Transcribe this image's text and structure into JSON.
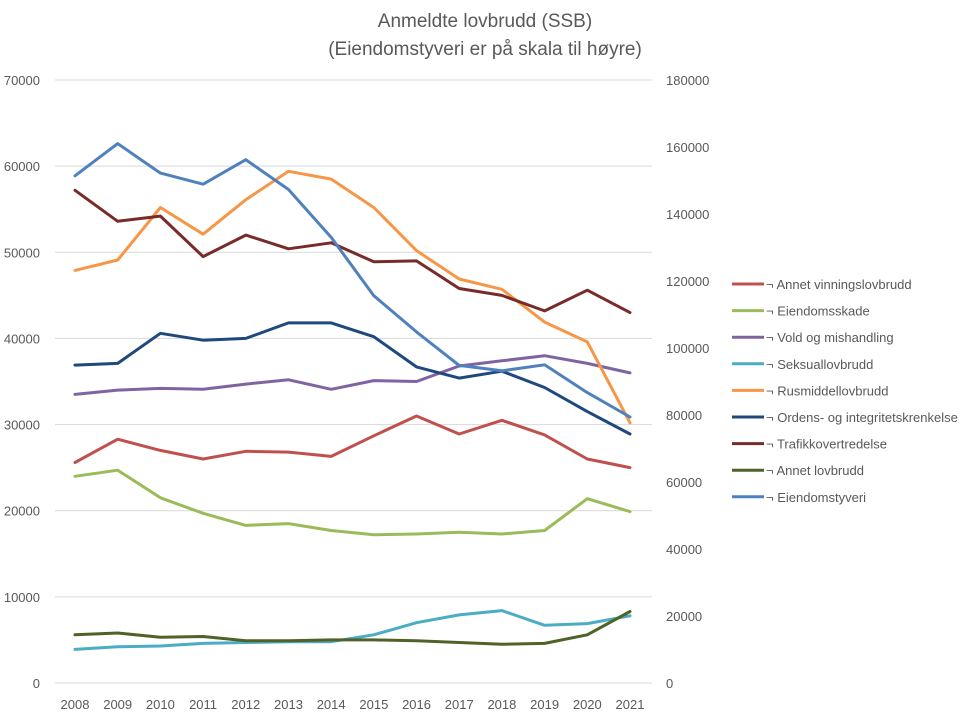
{
  "chart_data": {
    "type": "line",
    "title": "Anmeldte lovbrudd (SSB)",
    "subtitle": "(Eiendomstyveri er på skala til høyre)",
    "xlabel": "",
    "ylabel": "",
    "categories": [
      "2008",
      "2009",
      "2010",
      "2011",
      "2012",
      "2013",
      "2014",
      "2015",
      "2016",
      "2017",
      "2018",
      "2019",
      "2020",
      "2021"
    ],
    "ylim": [
      0,
      70000
    ],
    "y_ticks": [
      0,
      10000,
      20000,
      30000,
      40000,
      50000,
      60000,
      70000
    ],
    "y_tick_labels": [
      "0",
      "10000",
      "20000",
      "30000",
      "40000",
      "50000",
      "60000",
      "70000"
    ],
    "y2lim": [
      0,
      180000
    ],
    "y2_ticks": [
      0,
      20000,
      40000,
      60000,
      80000,
      100000,
      120000,
      140000,
      160000,
      180000
    ],
    "y2_tick_labels": [
      "0",
      "20000",
      "40000",
      "60000",
      "80000",
      "100000",
      "120000",
      "140000",
      "160000",
      "180000"
    ],
    "grid": true,
    "legend_position": "right",
    "series": [
      {
        "name": "¬ Annet vinningslovbrudd",
        "color": "#c0504d",
        "axis": "left",
        "values": [
          25600,
          28300,
          27000,
          26000,
          26900,
          26800,
          26300,
          28700,
          31000,
          28900,
          30500,
          28800,
          26000,
          25000
        ]
      },
      {
        "name": "¬ Eiendomsskade",
        "color": "#9bbb59",
        "axis": "left",
        "values": [
          24000,
          24700,
          21500,
          19700,
          18300,
          18500,
          17700,
          17200,
          17300,
          17500,
          17300,
          17700,
          21400,
          19900
        ]
      },
      {
        "name": "¬ Vold og mishandling",
        "color": "#8064a2",
        "axis": "left",
        "values": [
          33500,
          34000,
          34200,
          34100,
          34700,
          35200,
          34100,
          35100,
          35000,
          36800,
          37400,
          38000,
          37100,
          36000
        ]
      },
      {
        "name": "¬ Seksuallovbrudd",
        "color": "#4bacc6",
        "axis": "left",
        "values": [
          3900,
          4200,
          4300,
          4600,
          4700,
          4800,
          4800,
          5600,
          7000,
          7900,
          8400,
          6700,
          6900,
          7800
        ]
      },
      {
        "name": "¬ Rusmiddellovbrudd",
        "color": "#f79646",
        "axis": "left",
        "values": [
          47900,
          49100,
          55200,
          52100,
          56100,
          59400,
          58500,
          55200,
          50200,
          46900,
          45700,
          41900,
          39600,
          30200
        ]
      },
      {
        "name": "¬ Ordens- og integritetskrenkelse",
        "color": "#1f497d",
        "axis": "left",
        "values": [
          36900,
          37100,
          40600,
          39800,
          40000,
          41800,
          41800,
          40200,
          36700,
          35400,
          36200,
          34300,
          31500,
          28900
        ]
      },
      {
        "name": "¬ Trafikkovertredelse",
        "color": "#772c2a",
        "axis": "left",
        "values": [
          57200,
          53600,
          54200,
          49500,
          52000,
          50400,
          51100,
          48900,
          49000,
          45800,
          45000,
          43200,
          45600,
          43000
        ]
      },
      {
        "name": "¬ Annet lovbrudd",
        "color": "#4f6228",
        "axis": "left",
        "values": [
          5600,
          5800,
          5300,
          5400,
          4900,
          4900,
          5000,
          5000,
          4900,
          4700,
          4500,
          4600,
          5600,
          8300
        ]
      },
      {
        "name": "¬ Eiendomstyveri",
        "color": "#4f81bd",
        "axis": "right",
        "values": [
          151400,
          161000,
          152200,
          148900,
          156200,
          147300,
          133000,
          115600,
          104800,
          94800,
          93200,
          95000,
          86700,
          79400
        ]
      }
    ]
  }
}
